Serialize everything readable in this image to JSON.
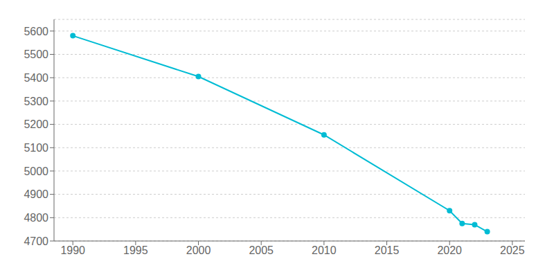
{
  "chart_data": {
    "type": "line",
    "x": [
      1990,
      2000,
      2010,
      2020,
      2021,
      2022,
      2023
    ],
    "values": [
      5580,
      5405,
      5155,
      4830,
      4775,
      4770,
      4740
    ],
    "color": "#00BCD4",
    "marker": "circle",
    "xlim": [
      1988.5,
      2026
    ],
    "xticks": [
      1990,
      1995,
      2000,
      2005,
      2010,
      2015,
      2020,
      2025
    ],
    "ylim": [
      4700,
      5650
    ],
    "yticks": [
      4700,
      4800,
      4900,
      5000,
      5100,
      5200,
      5300,
      5400,
      5500,
      5600
    ],
    "grid": true
  }
}
